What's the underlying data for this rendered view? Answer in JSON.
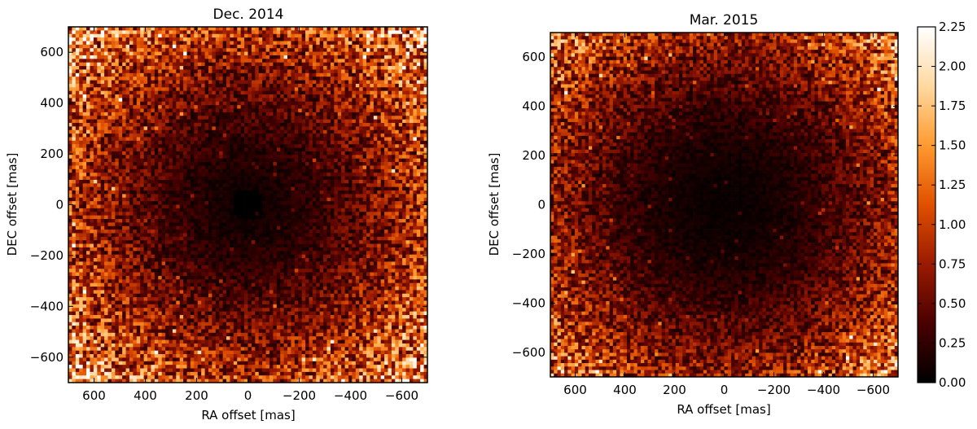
{
  "chart_data": [
    {
      "type": "heatmap",
      "title": "Dec. 2014",
      "xlabel": "RA offset [mas]",
      "ylabel": "DEC offset [mas]",
      "xlim": [
        700,
        -700
      ],
      "ylim": [
        -700,
        700
      ],
      "xticks": [
        600,
        400,
        200,
        0,
        -200,
        -400,
        -600
      ],
      "yticks": [
        -600,
        -400,
        -200,
        0,
        200,
        400,
        600
      ],
      "xtick_labels": [
        "600",
        "400",
        "200",
        "0",
        "−200",
        "−400",
        "−600"
      ],
      "ytick_labels": [
        "−600",
        "−400",
        "−200",
        "0",
        "200",
        "400",
        "600"
      ],
      "colormap": "gist_heat",
      "value_range": [
        0,
        2.25
      ],
      "grid": false
    },
    {
      "type": "heatmap",
      "title": "Mar. 2015",
      "xlabel": "RA offset [mas]",
      "ylabel": "DEC offset [mas]",
      "xlim": [
        700,
        -700
      ],
      "ylim": [
        -700,
        700
      ],
      "xticks": [
        600,
        400,
        200,
        0,
        -200,
        -400,
        -600
      ],
      "yticks": [
        -600,
        -400,
        -200,
        0,
        200,
        400,
        600
      ],
      "xtick_labels": [
        "600",
        "400",
        "200",
        "0",
        "−200",
        "−400",
        "−600"
      ],
      "ytick_labels": [
        "−600",
        "−400",
        "−200",
        "0",
        "200",
        "400",
        "600"
      ],
      "colormap": "gist_heat",
      "value_range": [
        0,
        2.25
      ],
      "grid": false
    }
  ],
  "colorbar": {
    "ticks": [
      0,
      0.25,
      0.5,
      0.75,
      1.0,
      1.25,
      1.5,
      1.75,
      2.0,
      2.25
    ],
    "tick_labels": [
      "0.00",
      "0.25",
      "0.50",
      "0.75",
      "1.00",
      "1.25",
      "1.50",
      "1.75",
      "2.00",
      "2.25"
    ],
    "colors": [
      "#000000",
      "#4a0000",
      "#9a1a00",
      "#e05000",
      "#ff9a30",
      "#ffd9a0",
      "#ffffff"
    ]
  }
}
